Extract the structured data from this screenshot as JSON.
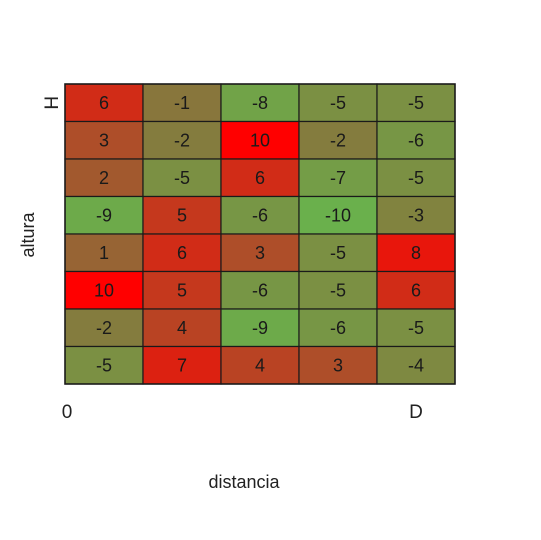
{
  "chart_data": {
    "type": "heatmap",
    "title": "",
    "xlabel": "distancia",
    "ylabel": "altura",
    "x_tick_labels": [
      "0",
      "D"
    ],
    "y_tick_labels": [
      "H"
    ],
    "rows": 8,
    "cols": 5,
    "values": [
      [
        6,
        -1,
        -8,
        -5,
        -5
      ],
      [
        3,
        -2,
        10,
        -2,
        -6
      ],
      [
        2,
        -5,
        6,
        -7,
        -5
      ],
      [
        -9,
        5,
        -6,
        -10,
        -3
      ],
      [
        1,
        6,
        3,
        -5,
        8
      ],
      [
        10,
        5,
        -6,
        -5,
        6
      ],
      [
        -2,
        4,
        -9,
        -6,
        -5
      ],
      [
        -5,
        7,
        4,
        3,
        -4
      ]
    ],
    "color_scale": {
      "min": -10,
      "max": 10,
      "low_color": "#6ab04c",
      "mid_color": "#8b6f3a",
      "high_color": "#ff0000"
    },
    "grid": true
  }
}
